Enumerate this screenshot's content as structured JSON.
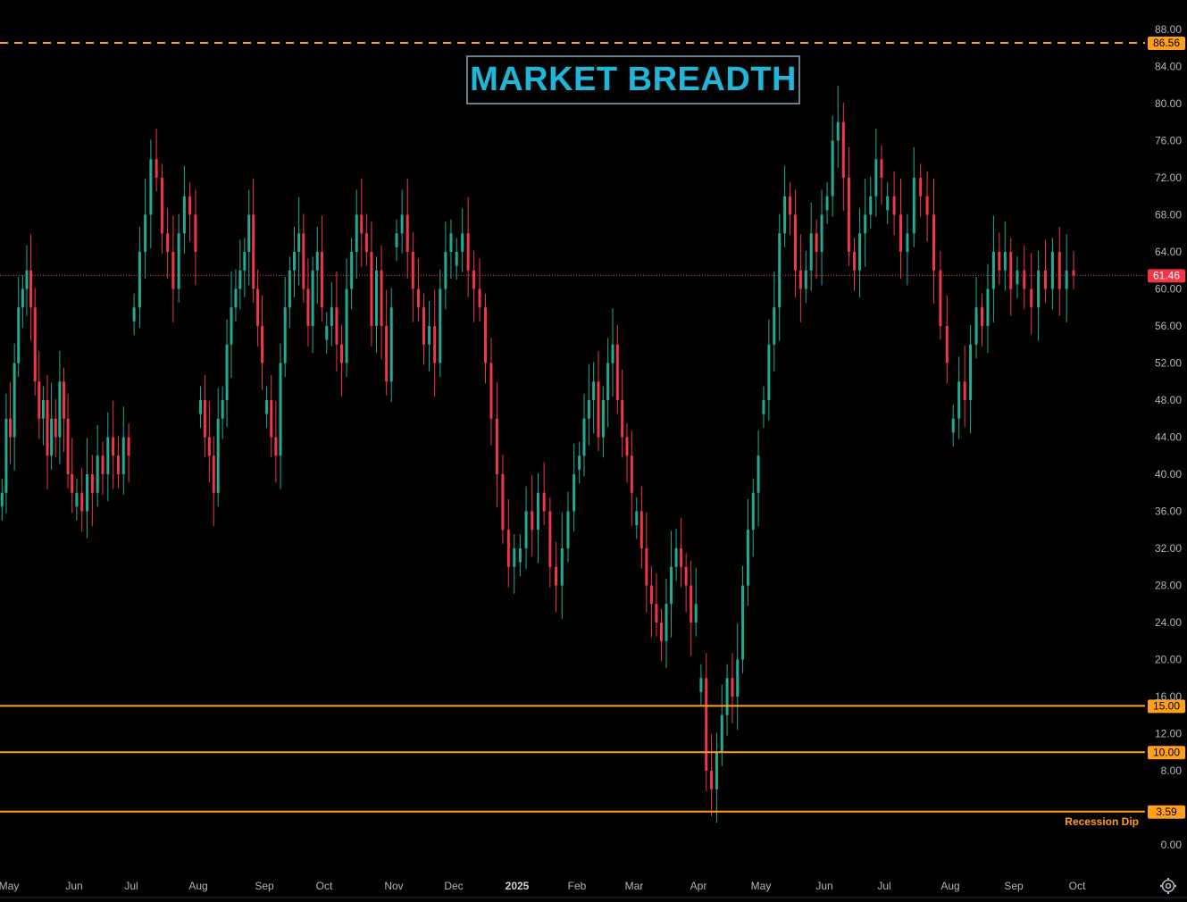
{
  "title": "MARKET BREADTH",
  "colors": {
    "background": "#000000",
    "up": "#22ab94",
    "down": "#f23645",
    "level_line": "#ff9f1a",
    "last_price": "#f23645",
    "title": "#1fb6d8",
    "title_border": "#6b7e8c",
    "axis_text": "#b2b5be"
  },
  "chart_data": {
    "type": "candlestick",
    "y_axis": {
      "ylim": [
        -2,
        89
      ],
      "ticks": [
        "88.00",
        "84.00",
        "80.00",
        "76.00",
        "72.00",
        "68.00",
        "64.00",
        "60.00",
        "56.00",
        "52.00",
        "48.00",
        "44.00",
        "40.00",
        "36.00",
        "32.00",
        "28.00",
        "24.00",
        "20.00",
        "16.00",
        "12.00",
        "8.00",
        "0.00"
      ],
      "position": "right"
    },
    "x_axis": {
      "labels": [
        "May",
        "Jun",
        "Jul",
        "Aug",
        "Sep",
        "Oct",
        "Nov",
        "Dec",
        "2025",
        "Feb",
        "Mar",
        "Apr",
        "May",
        "Jun",
        "Jul",
        "Aug",
        "Sep",
        "Oct"
      ],
      "bold_labels": [
        "2025"
      ]
    },
    "last_value": 61.46,
    "levels": [
      {
        "value": 86.56,
        "label": "86.56",
        "style": "dashed"
      },
      {
        "value": 15.0,
        "label": "15.00",
        "style": "solid"
      },
      {
        "value": 10.0,
        "label": "10.00",
        "style": "solid"
      },
      {
        "value": 3.59,
        "label": "3.59",
        "style": "solid",
        "annotation": "Recession Dip"
      }
    ],
    "series": [
      {
        "x_start": "May",
        "x_end": "Jun",
        "values": [
          38,
          46,
          44,
          52,
          58,
          60,
          62,
          58,
          50,
          46,
          48,
          42,
          46,
          44,
          50,
          46,
          40,
          38
        ]
      },
      {
        "x_start": "Jun",
        "x_end": "Jul",
        "values": [
          38,
          36,
          40,
          38,
          42,
          40,
          44,
          42,
          40,
          44,
          42
        ]
      },
      {
        "x_start": "Jul",
        "x_end": "Aug",
        "values": [
          58,
          64,
          68,
          74,
          72,
          66,
          64,
          60,
          66,
          70,
          68,
          64
        ]
      },
      {
        "x_start": "Aug",
        "x_end": "Sep",
        "values": [
          48,
          44,
          42,
          38,
          46,
          48,
          54,
          58,
          60,
          62,
          64,
          68,
          60,
          56,
          52
        ]
      },
      {
        "x_start": "Sep",
        "x_end": "Oct",
        "values": [
          48,
          44,
          42,
          52,
          58,
          62,
          64,
          66,
          60,
          56,
          62,
          64,
          58
        ]
      },
      {
        "x_start": "Oct",
        "x_end": "Nov",
        "values": [
          56,
          58,
          54,
          52,
          60,
          64,
          68,
          66,
          64,
          56,
          62,
          56,
          50,
          58
        ]
      },
      {
        "x_start": "Nov",
        "x_end": "Dec",
        "values": [
          66,
          68,
          64,
          60,
          58,
          54,
          56,
          52,
          60,
          64,
          66
        ]
      },
      {
        "x_start": "Dec",
        "x_end": "2025",
        "values": [
          64,
          66,
          62,
          60,
          58,
          52,
          46,
          40,
          34,
          30,
          32
        ]
      },
      {
        "x_start": "2025",
        "x_end": "Feb",
        "values": [
          32,
          36,
          34,
          38,
          36,
          30,
          28,
          32,
          36,
          40
        ]
      },
      {
        "x_start": "Feb",
        "x_end": "Mar",
        "values": [
          42,
          46,
          48,
          50,
          44,
          48,
          52,
          54,
          48,
          44,
          42,
          38
        ]
      },
      {
        "x_start": "Mar",
        "x_end": "Apr",
        "values": [
          36,
          32,
          28,
          26,
          24,
          22,
          26,
          30,
          32,
          30,
          28,
          24,
          26
        ]
      },
      {
        "x_start": "Apr",
        "x_end": "May",
        "values": [
          18,
          8,
          6,
          10,
          14,
          18,
          16,
          20,
          28,
          34,
          38,
          42
        ]
      },
      {
        "x_start": "May",
        "x_end": "Jun",
        "values": [
          48,
          54,
          58,
          66,
          70,
          68,
          62,
          60,
          62,
          66,
          64,
          68
        ]
      },
      {
        "x_start": "Jun",
        "x_end": "Jul",
        "values": [
          70,
          76,
          78,
          72,
          64,
          62,
          66,
          68,
          70,
          74,
          72
        ]
      },
      {
        "x_start": "Jul",
        "x_end": "Aug",
        "values": [
          70,
          68,
          64,
          66,
          72,
          70,
          68,
          62,
          56,
          52
        ]
      },
      {
        "x_start": "Aug",
        "x_end": "Sep",
        "values": [
          46,
          50,
          48,
          54,
          58,
          56,
          60,
          64,
          62,
          64,
          60
        ]
      },
      {
        "x_start": "Sep",
        "x_end": "Oct",
        "values": [
          62,
          60,
          58,
          62,
          60,
          64,
          60,
          62,
          61.46
        ]
      }
    ]
  },
  "settings_icon": "gear-icon"
}
